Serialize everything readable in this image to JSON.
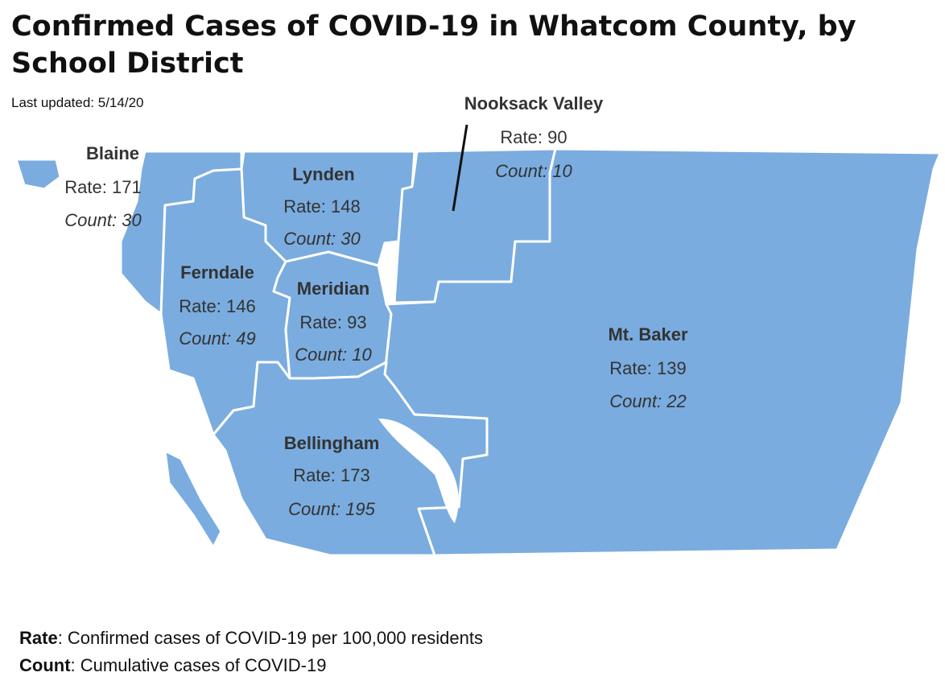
{
  "header": {
    "title": "Confirmed Cases of COVID-19 in Whatcom County, by School District",
    "updated": "Last updated: 5/14/20"
  },
  "districts": [
    {
      "name": "Blaine",
      "rate": "Rate: 171",
      "count": "Count: 30"
    },
    {
      "name": "Lynden",
      "rate": "Rate: 148",
      "count": "Count: 30"
    },
    {
      "name": "Nooksack Valley",
      "rate": "Rate: 90",
      "count": "Count: 10"
    },
    {
      "name": "Ferndale",
      "rate": "Rate: 146",
      "count": "Count: 49"
    },
    {
      "name": "Meridian",
      "rate": "Rate: 93",
      "count": "Count: 10"
    },
    {
      "name": "Mt. Baker",
      "rate": "Rate: 139",
      "count": "Count: 22"
    },
    {
      "name": "Bellingham",
      "rate": "Rate: 173",
      "count": "Count: 195"
    }
  ],
  "legend": [
    {
      "term": "Rate",
      "definition": ": Confirmed cases of COVID-19 per 100,000 residents"
    },
    {
      "term": "Count",
      "definition": ": Cumulative cases of COVID-19"
    }
  ]
}
